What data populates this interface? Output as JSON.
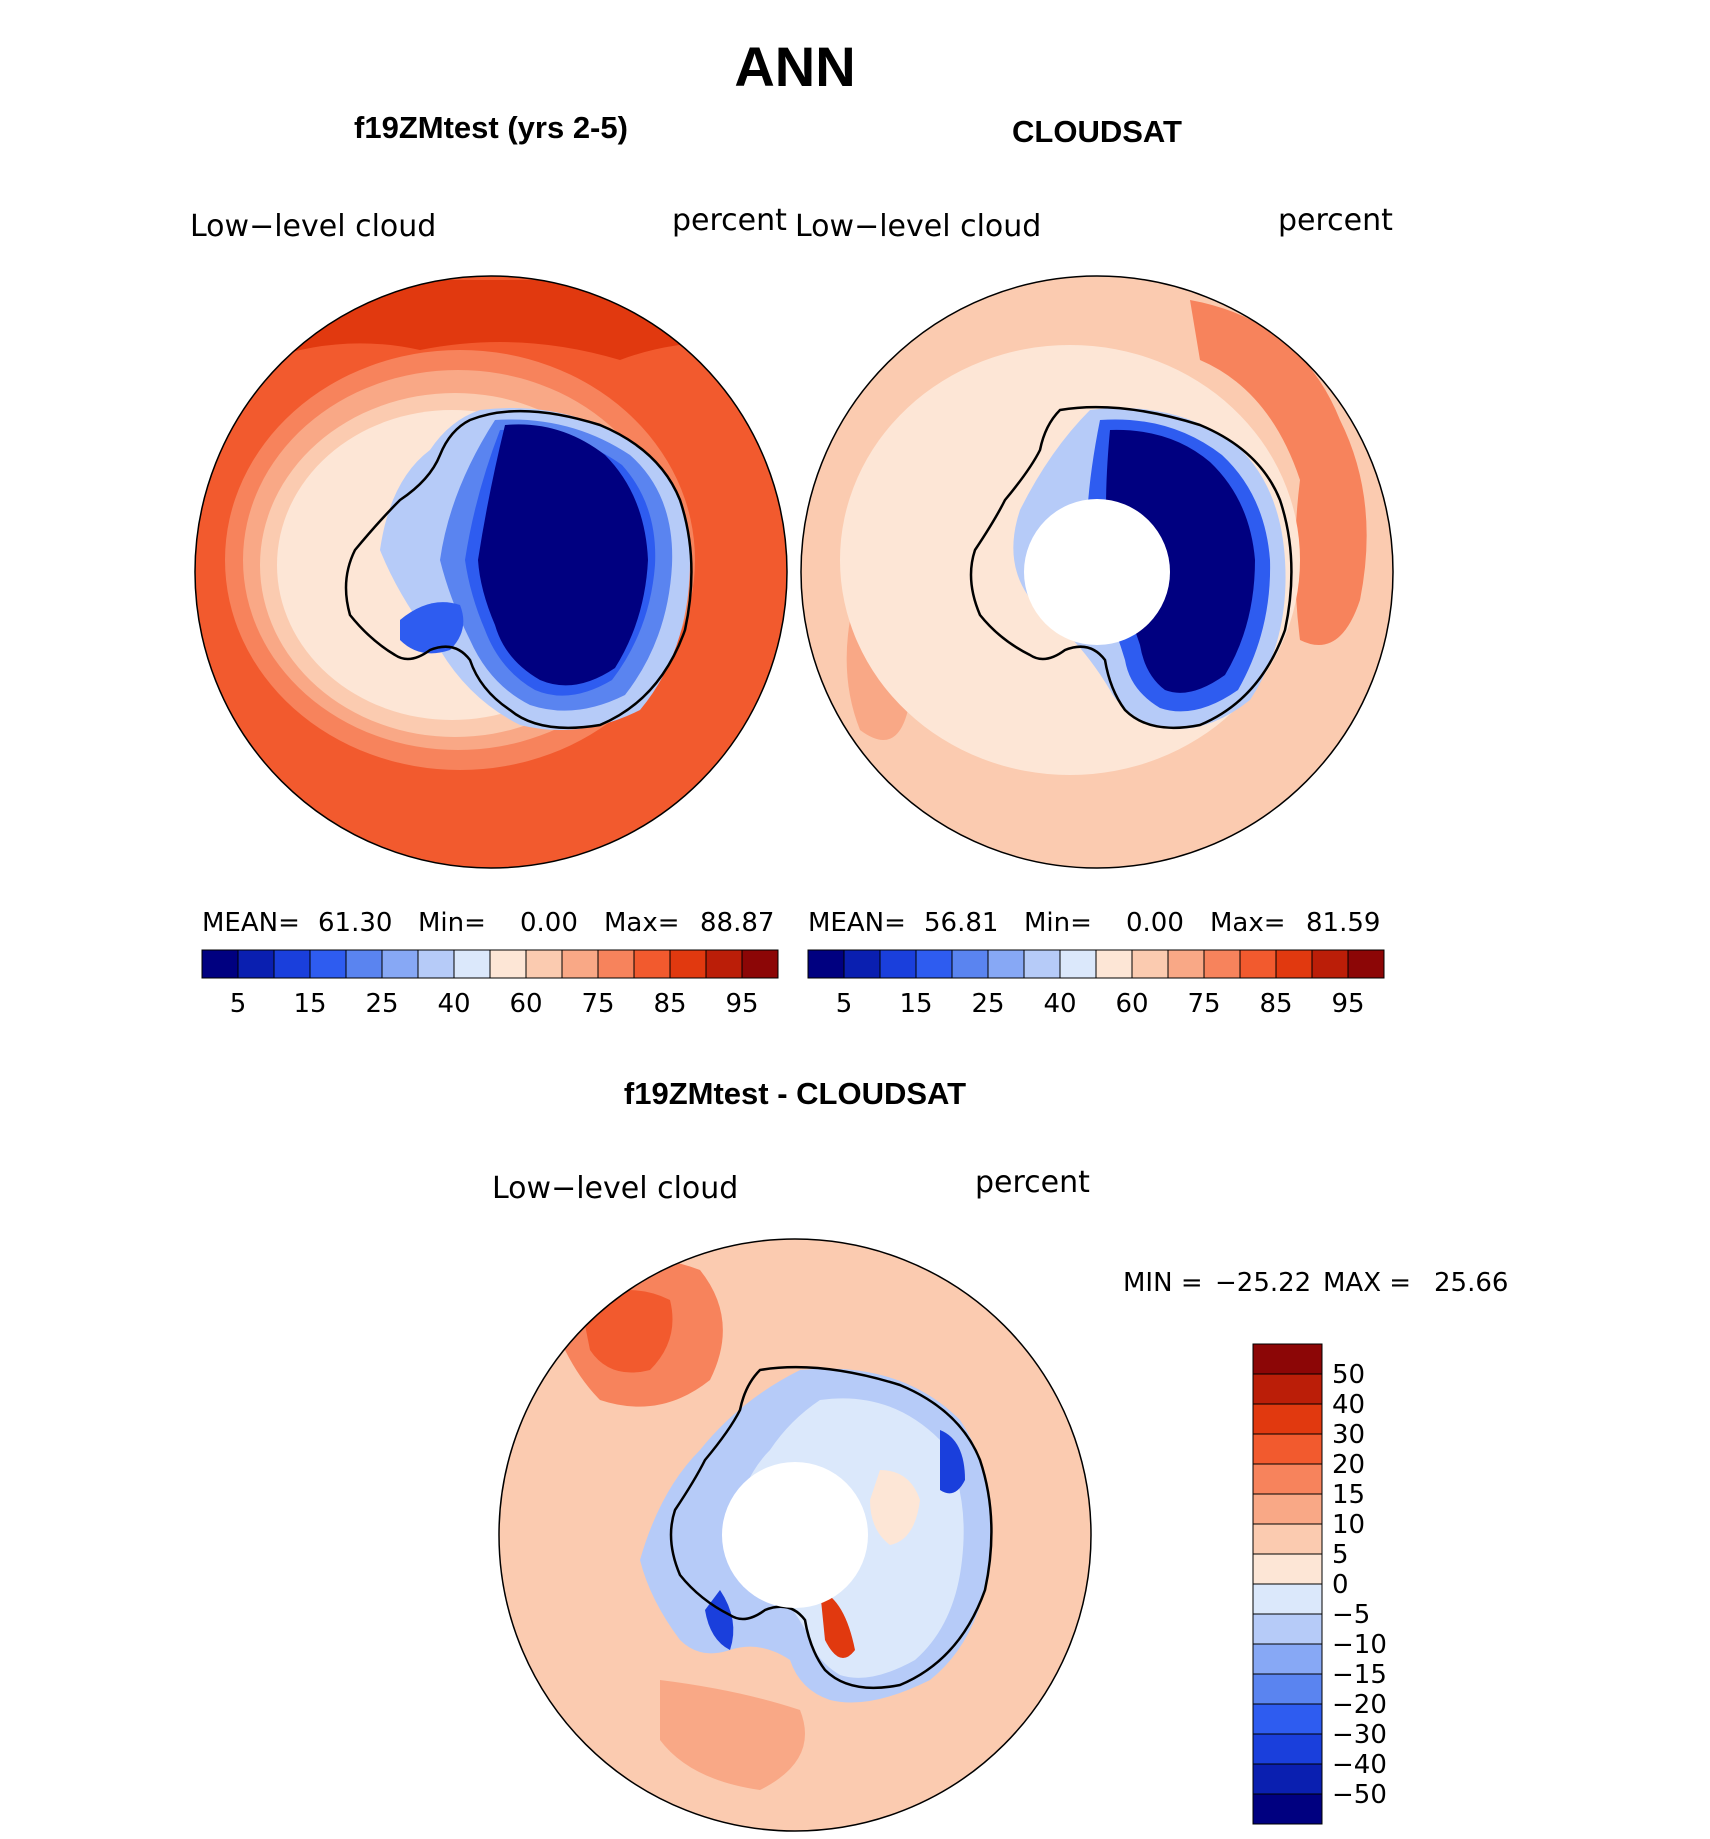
{
  "chart_data": {
    "type": "polar-contour-map",
    "title": "ANN",
    "panels": [
      {
        "id": "model",
        "title": "f19ZMtest (yrs 2-5)",
        "variable": "Low−level cloud",
        "units": "percent",
        "stats": {
          "mean_label": "MEAN=",
          "mean": "61.30",
          "min_label": "Min=",
          "min": "0.00",
          "max_label": "Max=",
          "max": "88.87"
        },
        "colorbar": {
          "levels": [
            5,
            10,
            15,
            20,
            25,
            30,
            40,
            50,
            60,
            70,
            75,
            80,
            85,
            90,
            95
          ],
          "tick_labels": [
            "5",
            "15",
            "25",
            "40",
            "60",
            "75",
            "85",
            "95"
          ]
        }
      },
      {
        "id": "obs",
        "title": "CLOUDSAT",
        "variable": "Low−level cloud",
        "units": "percent",
        "stats": {
          "mean_label": "MEAN=",
          "mean": "56.81",
          "min_label": "Min=",
          "min": "0.00",
          "max_label": "Max=",
          "max": "81.59"
        },
        "colorbar": {
          "levels": [
            5,
            10,
            15,
            20,
            25,
            30,
            40,
            50,
            60,
            70,
            75,
            80,
            85,
            90,
            95
          ],
          "tick_labels": [
            "5",
            "15",
            "25",
            "40",
            "60",
            "75",
            "85",
            "95"
          ]
        }
      },
      {
        "id": "diff",
        "title": "f19ZMtest - CLOUDSAT",
        "variable": "Low−level cloud",
        "units": "percent",
        "stats": {
          "min_label": "MIN =",
          "min": "−25.22",
          "max_label": "MAX =",
          "max": "25.66"
        },
        "colorbar": {
          "levels": [
            50,
            40,
            30,
            20,
            15,
            10,
            5,
            0,
            -5,
            -10,
            -15,
            -20,
            -30,
            -40,
            -50
          ],
          "tick_labels": [
            "50",
            "40",
            "30",
            "20",
            "15",
            "10",
            "5",
            "0",
            "−5",
            "−10",
            "−15",
            "−20",
            "−30",
            "−40",
            "−50"
          ]
        }
      }
    ],
    "palette": [
      "#000080",
      "#0a1fb0",
      "#1a3fdc",
      "#2e5cf0",
      "#5a84f0",
      "#87a8f5",
      "#b6cbf8",
      "#dbe8fb",
      "#fde6d6",
      "#fbcbb0",
      "#f9a886",
      "#f7835c",
      "#f25a2e",
      "#e1390f",
      "#bb1e08",
      "#8c0606"
    ]
  }
}
